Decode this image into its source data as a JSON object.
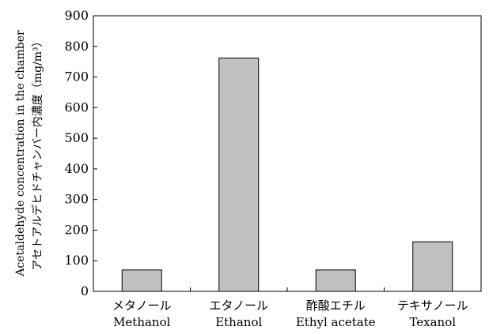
{
  "chart_data": {
    "type": "bar",
    "categories": [
      {
        "jp": "メタノール",
        "en": "Methanol"
      },
      {
        "jp": "エタノール",
        "en": "Ethanol"
      },
      {
        "jp": "酢酸エチル",
        "en": "Ethyl acetate"
      },
      {
        "jp": "テキサノール",
        "en": "Texanol"
      }
    ],
    "values": [
      70,
      762,
      70,
      162
    ],
    "ylabel_en": "Acetaldehyde concentration in the chamber",
    "ylabel_jp": "アセトアルデヒドチャンバー内濃度（mg/m³）",
    "ylim": [
      0,
      900
    ],
    "yticks": [
      0,
      100,
      200,
      300,
      400,
      500,
      600,
      700,
      800,
      900
    ],
    "grid": false,
    "bar_color": "#c0c0c0"
  }
}
